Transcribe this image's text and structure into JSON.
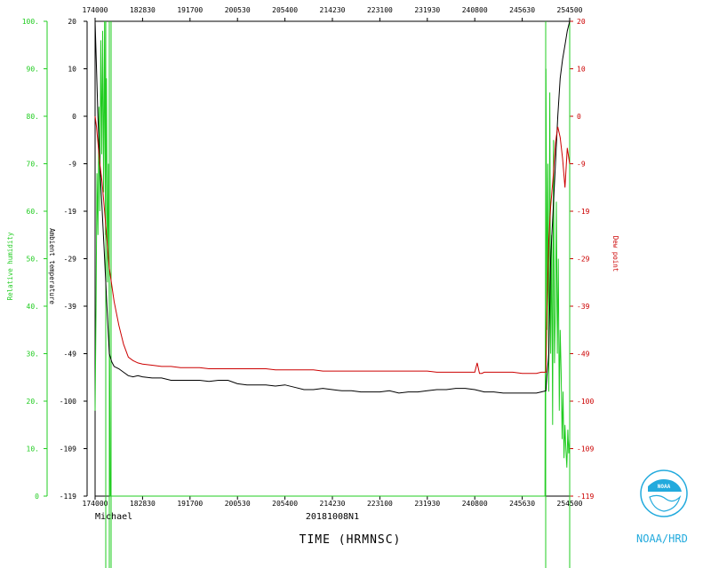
{
  "chart_data": {
    "type": "line",
    "xlabel": "TIME (HRMNSC)",
    "storm_name": "Michael",
    "flight_id": "20181008N1",
    "logo_label": "NOAA/HRD",
    "x_ticks": [
      "174000",
      "182830",
      "191700",
      "200530",
      "205400",
      "214230",
      "223100",
      "231930",
      "240800",
      "245630",
      "254500"
    ],
    "x_range": [
      0,
      10
    ],
    "axes": {
      "relative_humidity": {
        "label": "Relative humidity",
        "ticks": [
          "100.",
          "90.",
          "80.",
          "70.",
          "60.",
          "50.",
          "40.",
          "30.",
          "20.",
          "10.",
          "0"
        ],
        "range": [
          0,
          100
        ],
        "color": "#22cc22"
      },
      "ambient_temperature": {
        "label": "Ambient temperature",
        "ticks": [
          "20",
          "10",
          "0",
          "-9",
          "-19",
          "-29",
          "-39",
          "-49",
          "-100",
          "-109",
          "-119"
        ],
        "range": [
          -119,
          20
        ],
        "color": "#000000"
      },
      "dew_point": {
        "label": "Dew point",
        "ticks": [
          "20",
          "10",
          "0",
          "-9",
          "-19",
          "-29",
          "-39",
          "-49",
          "-100",
          "-109",
          "-119"
        ],
        "range": [
          -119,
          20
        ],
        "color": "#cc0000"
      }
    },
    "series": [
      {
        "name": "Ambient temperature",
        "color": "#000000",
        "x": [
          0.0,
          0.03,
          0.06,
          0.1,
          0.15,
          0.2,
          0.25,
          0.3,
          0.35,
          0.4,
          0.5,
          0.6,
          0.7,
          0.8,
          0.9,
          1.0,
          1.2,
          1.4,
          1.6,
          1.8,
          2.0,
          2.2,
          2.4,
          2.6,
          2.8,
          3.0,
          3.2,
          3.4,
          3.6,
          3.8,
          4.0,
          4.2,
          4.4,
          4.6,
          4.8,
          5.0,
          5.2,
          5.4,
          5.6,
          5.8,
          6.0,
          6.2,
          6.4,
          6.6,
          6.8,
          7.0,
          7.2,
          7.4,
          7.6,
          7.8,
          8.0,
          8.2,
          8.4,
          8.6,
          8.8,
          9.0,
          9.2,
          9.3,
          9.4,
          9.5,
          9.52,
          9.56,
          9.6,
          9.65,
          9.7,
          9.75,
          9.8,
          9.85,
          9.9,
          9.95,
          10.0
        ],
        "values": [
          20,
          10,
          0,
          -9,
          -19,
          -29,
          -39,
          -49,
          -56,
          -60,
          -62,
          -65,
          -68,
          -69,
          -68,
          -69,
          -70,
          -70,
          -72,
          -72,
          -72,
          -72,
          -73,
          -72,
          -72,
          -75,
          -76,
          -76,
          -76,
          -77,
          -76,
          -78,
          -80,
          -80,
          -79,
          -80,
          -81,
          -81,
          -82,
          -82,
          -82,
          -81,
          -83,
          -82,
          -82,
          -81,
          -80,
          -80,
          -79,
          -79,
          -80,
          -82,
          -82,
          -83,
          -83,
          -83,
          -83,
          -83,
          -82,
          -81,
          -68,
          -49,
          -29,
          -19,
          -9,
          0,
          8,
          12,
          15,
          18,
          20
        ]
      },
      {
        "name": "Dew point",
        "color": "#cc0000",
        "x": [
          0.0,
          0.03,
          0.06,
          0.1,
          0.15,
          0.2,
          0.25,
          0.3,
          0.4,
          0.5,
          0.6,
          0.7,
          0.8,
          0.9,
          1.0,
          1.2,
          1.4,
          1.6,
          1.8,
          2.0,
          2.2,
          2.4,
          2.6,
          2.8,
          3.0,
          3.2,
          3.4,
          3.6,
          3.8,
          4.0,
          4.2,
          4.4,
          4.6,
          4.8,
          5.0,
          5.2,
          5.4,
          5.6,
          5.8,
          6.0,
          6.2,
          6.4,
          6.6,
          6.8,
          7.0,
          7.2,
          7.4,
          7.6,
          7.8,
          8.0,
          8.05,
          8.1,
          8.15,
          8.2,
          8.4,
          8.6,
          8.8,
          9.0,
          9.2,
          9.3,
          9.4,
          9.5,
          9.52,
          9.56,
          9.6,
          9.65,
          9.7,
          9.75,
          9.8,
          9.85,
          9.9,
          9.95,
          10.0
        ],
        "values": [
          0,
          -2,
          -5,
          -9,
          -13,
          -19,
          -25,
          -31,
          -38,
          -43,
          -47,
          -52,
          -55,
          -57,
          -58,
          -59,
          -60,
          -60,
          -61,
          -61,
          -61,
          -62,
          -62,
          -62,
          -62,
          -62,
          -62,
          -62,
          -63,
          -63,
          -63,
          -63,
          -63,
          -64,
          -64,
          -64,
          -64,
          -64,
          -64,
          -64,
          -64,
          -64,
          -64,
          -64,
          -64,
          -65,
          -65,
          -65,
          -65,
          -65,
          -57,
          -66,
          -66,
          -65,
          -65,
          -65,
          -65,
          -66,
          -66,
          -66,
          -65,
          -65,
          -40,
          -25,
          -18,
          -12,
          -5,
          -2,
          -4,
          -8,
          -14,
          -6,
          -9
        ]
      },
      {
        "name": "Relative humidity",
        "color": "#22cc22",
        "x": [
          0.0,
          0.02,
          0.04,
          0.06,
          0.08,
          0.1,
          0.12,
          0.14,
          0.16,
          0.18,
          0.2,
          0.22,
          0.24,
          0.26,
          0.28,
          0.3,
          0.32,
          9.48,
          9.5,
          9.52,
          9.54,
          9.56,
          9.58,
          9.6,
          9.62,
          9.64,
          9.66,
          9.68,
          9.7,
          9.72,
          9.74,
          9.76,
          9.78,
          9.8,
          9.82,
          9.84,
          9.86,
          9.88,
          9.9,
          9.92,
          9.94,
          9.96,
          9.98,
          10.0
        ],
        "values": [
          18,
          40,
          68,
          55,
          82,
          60,
          96,
          72,
          98,
          64,
          100,
          55,
          88,
          45,
          70,
          40,
          0,
          0,
          90,
          35,
          70,
          22,
          85,
          30,
          55,
          15,
          75,
          28,
          40,
          62,
          30,
          50,
          18,
          35,
          26,
          12,
          22,
          8,
          15,
          10,
          6,
          14,
          9,
          12
        ]
      }
    ]
  }
}
